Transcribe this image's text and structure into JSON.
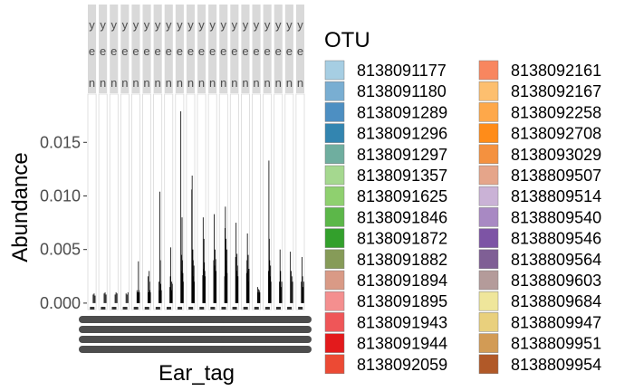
{
  "chart_data": {
    "type": "bar",
    "xlabel": "Ear_tag",
    "ylabel": "Abundance",
    "yticks": [
      "0.000",
      "0.005",
      "0.010",
      "0.015"
    ],
    "ytick_values": [
      0,
      0.005,
      0.01,
      0.015
    ],
    "ylim": [
      -0.0006,
      0.0195
    ],
    "grid": false,
    "legend": {
      "title": "OTU",
      "placement": "right",
      "columns": 2
    },
    "facet_count": 20,
    "facet_strip_letters": [
      "y",
      "e",
      "n"
    ],
    "otus": [
      {
        "name": "8138091177",
        "color": "#a6cee3"
      },
      {
        "name": "8138091180",
        "color": "#79aed2"
      },
      {
        "name": "8138091289",
        "color": "#4d8fc2"
      },
      {
        "name": "8138091296",
        "color": "#3385b0"
      },
      {
        "name": "8138091297",
        "color": "#6fae9f"
      },
      {
        "name": "8138091357",
        "color": "#a5d88f"
      },
      {
        "name": "8138091625",
        "color": "#8fd06f"
      },
      {
        "name": "8138091846",
        "color": "#5cb749"
      },
      {
        "name": "8138091872",
        "color": "#33a02c"
      },
      {
        "name": "8138091882",
        "color": "#869b58"
      },
      {
        "name": "8138091894",
        "color": "#d99a86"
      },
      {
        "name": "8138091895",
        "color": "#f48f8f"
      },
      {
        "name": "8138091943",
        "color": "#ef5658"
      },
      {
        "name": "8138091944",
        "color": "#e31a1c"
      },
      {
        "name": "8138092059",
        "color": "#ec4a34"
      },
      {
        "name": "8138092161",
        "color": "#f8865f"
      },
      {
        "name": "8138092167",
        "color": "#fdbf6f"
      },
      {
        "name": "8138092258",
        "color": "#fea84a"
      },
      {
        "name": "8138092708",
        "color": "#ff8c19"
      },
      {
        "name": "8138093029",
        "color": "#f4913f"
      },
      {
        "name": "8138809507",
        "color": "#e5a58a"
      },
      {
        "name": "8138809514",
        "color": "#cab2d6"
      },
      {
        "name": "8138809540",
        "color": "#a889c3"
      },
      {
        "name": "8138809546",
        "color": "#7d54a5"
      },
      {
        "name": "8138809564",
        "color": "#7f5f95"
      },
      {
        "name": "8138809603",
        "color": "#b49b9a"
      },
      {
        "name": "8138809684",
        "color": "#efe69b"
      },
      {
        "name": "8138809947",
        "color": "#e9d07d"
      },
      {
        "name": "8138809951",
        "color": "#d29b55"
      },
      {
        "name": "8138809954",
        "color": "#b15928"
      }
    ],
    "facets": [
      [
        0.0008,
        0.0009,
        0.0007
      ],
      [
        0.0009,
        0.001,
        0.0008
      ],
      [
        0.0008,
        0.001,
        0.0009
      ],
      [
        0.0009,
        0.0008,
        0.001
      ],
      [
        0.0012,
        0.001,
        0.001,
        0.0039,
        0.0012,
        0.001
      ],
      [
        0.0025,
        0.001,
        0.001,
        0.003,
        0.002,
        0.0012,
        0.001
      ],
      [
        0.002,
        0.0012,
        0.0104,
        0.004,
        0.0018,
        0.0012
      ],
      [
        0.0015,
        0.0025,
        0.0052,
        0.0012,
        0.002,
        0.0018
      ],
      [
        0.0179,
        0.0045,
        0.003,
        0.008,
        0.004,
        0.0028,
        0.002
      ],
      [
        0.0106,
        0.0119,
        0.003,
        0.005,
        0.004,
        0.0025,
        0.0035,
        0.002
      ],
      [
        0.0026,
        0.008,
        0.0032,
        0.006,
        0.0038,
        0.003,
        0.0025
      ],
      [
        0.004,
        0.0083,
        0.0035,
        0.005,
        0.0041,
        0.003
      ],
      [
        0.0025,
        0.007,
        0.009,
        0.004,
        0.006,
        0.0035,
        0.005,
        0.0028
      ],
      [
        0.0043,
        0.0075,
        0.003,
        0.0046,
        0.0035,
        0.0025
      ],
      [
        0.0028,
        0.004,
        0.0065,
        0.003,
        0.0045,
        0.002,
        0.0032
      ],
      [
        0.0015,
        0.001,
        0.0013,
        0.0012,
        0.001
      ],
      [
        0.003,
        0.0133,
        0.006,
        0.004,
        0.0025,
        0.0035,
        0.002
      ],
      [
        0.002,
        0.005,
        0.003,
        0.0015,
        0.002
      ],
      [
        0.0048,
        0.003,
        0.0025,
        0.002
      ],
      [
        0.002,
        0.0043,
        0.0025,
        0.0015,
        0.002
      ]
    ]
  }
}
